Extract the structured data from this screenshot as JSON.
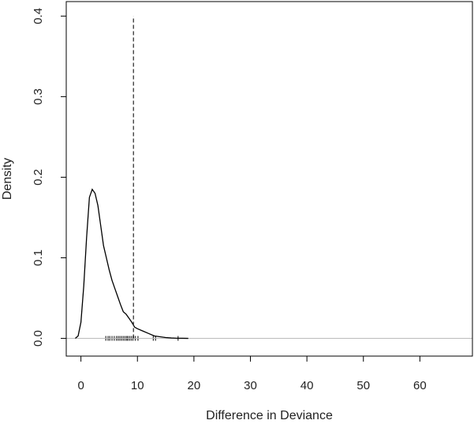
{
  "chart_data": {
    "type": "line",
    "title": "",
    "xlabel": "Difference in Deviance",
    "ylabel": "Density",
    "xlim": [
      -2.6,
      69.3
    ],
    "ylim": [
      -0.022,
      0.418
    ],
    "x_ticks": [
      0,
      10,
      20,
      30,
      40,
      50,
      60
    ],
    "y_ticks": [
      0.0,
      0.1,
      0.2,
      0.3,
      0.4
    ],
    "x_tick_labels": [
      "0",
      "10",
      "20",
      "30",
      "40",
      "50",
      "60"
    ],
    "y_tick_labels": [
      "0.0",
      "0.1",
      "0.2",
      "0.3",
      "0.4"
    ],
    "grid": false,
    "colors": {
      "density": "#000000",
      "baseline": "#bbbbbb",
      "reference": "#333333"
    },
    "series": [
      {
        "type": "line",
        "x": [
          -1.0,
          -0.5,
          0.0,
          0.5,
          1.0,
          1.5,
          2.0,
          2.5,
          3.0,
          3.5,
          4.0,
          4.5,
          5.0,
          5.5,
          6.0,
          6.5,
          7.0,
          7.5,
          8.0,
          8.5,
          9.0,
          9.5,
          10.0,
          11.0,
          12.0,
          13.0,
          14.0,
          15.0,
          16.0,
          17.0,
          18.0,
          19.0
        ],
        "y": [
          0.0,
          0.003,
          0.02,
          0.065,
          0.125,
          0.175,
          0.185,
          0.18,
          0.165,
          0.14,
          0.115,
          0.1,
          0.085,
          0.072,
          0.062,
          0.052,
          0.042,
          0.033,
          0.03,
          0.025,
          0.02,
          0.014,
          0.012,
          0.009,
          0.006,
          0.003,
          0.002,
          0.001,
          0.0005,
          0.0002,
          0.0001,
          0.0
        ]
      }
    ],
    "reference_line": {
      "x": 9.3,
      "y_range": [
        0.0,
        0.4
      ],
      "style": "dashed"
    },
    "baseline": {
      "y": 0.0
    },
    "rug": [
      4.4,
      4.8,
      5.1,
      5.5,
      5.9,
      6.3,
      6.6,
      6.9,
      7.2,
      7.5,
      7.8,
      8.1,
      8.3,
      8.6,
      8.9,
      9.2,
      9.6,
      10.1,
      12.8,
      13.2,
      17.2
    ]
  }
}
